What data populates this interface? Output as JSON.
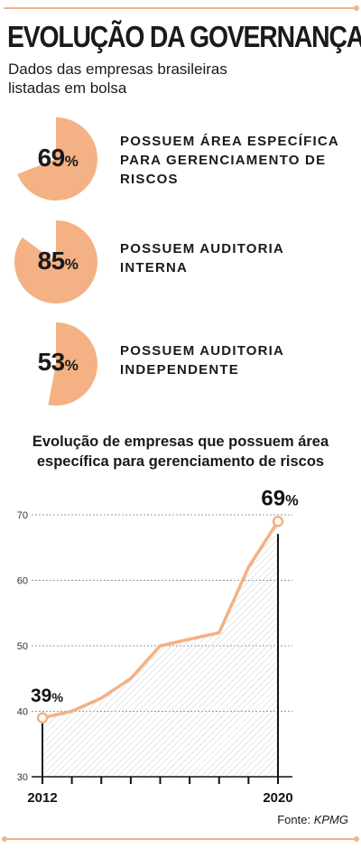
{
  "header": {
    "title": "EVOLUÇÃO DA GOVERNANÇA",
    "subtitle": "Dados das empresas brasileiras listadas em bolsa"
  },
  "colors": {
    "accent": "#f4b183",
    "text": "#1a1a1a",
    "grid": "#9a9a9a"
  },
  "stats": [
    {
      "value": 69,
      "value_label": "69",
      "unit": "%",
      "label": "POSSUEM ÁREA ESPECÍFICA PARA GERENCIAMENTO DE RISCOS"
    },
    {
      "value": 85,
      "value_label": "85",
      "unit": "%",
      "label": "POSSUEM AUDITORIA INTERNA"
    },
    {
      "value": 53,
      "value_label": "53",
      "unit": "%",
      "label": "POSSUEM AUDITORIA INDEPENDENTE"
    }
  ],
  "chart_data": {
    "type": "line",
    "title": "Evolução de empresas que possuem área específica para gerenciamento de riscos",
    "x": [
      2012,
      2013,
      2014,
      2015,
      2016,
      2017,
      2018,
      2019,
      2020
    ],
    "values": [
      39,
      40,
      42,
      45,
      50,
      51,
      52,
      62,
      69
    ],
    "ylim": [
      30,
      70
    ],
    "yticks": [
      30,
      40,
      50,
      60,
      70
    ],
    "x_tick_labels": {
      "first": "2012",
      "last": "2020"
    },
    "annotations": [
      {
        "x": 2012,
        "label": "39",
        "unit": "%"
      },
      {
        "x": 2020,
        "label": "69",
        "unit": "%"
      }
    ],
    "grid": true,
    "xlabel": "",
    "ylabel": ""
  },
  "source": {
    "prefix": "Fonte:",
    "name": "KPMG"
  }
}
